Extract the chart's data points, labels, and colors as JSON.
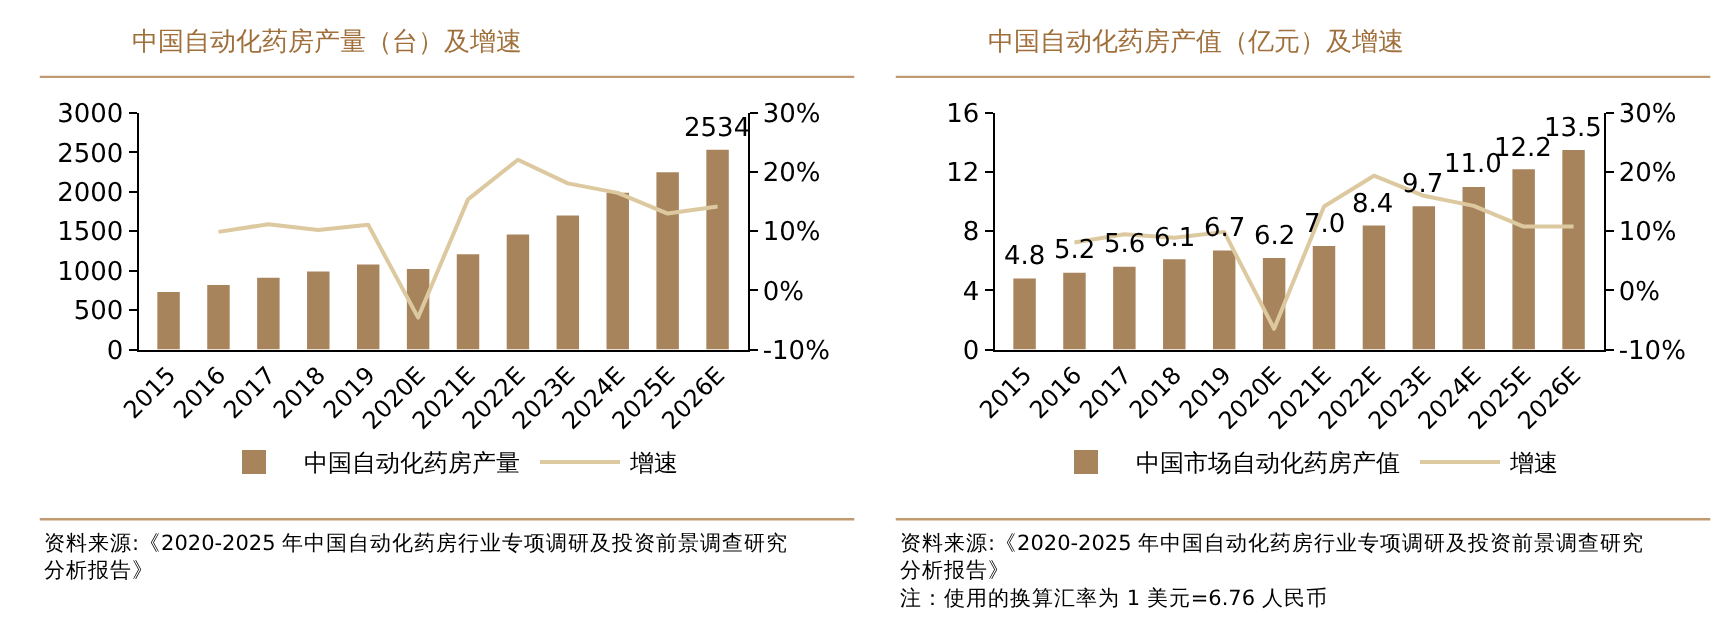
{
  "chart_data": [
    {
      "type": "bar",
      "title": "中国自动化药房产量（台）及增速",
      "categories": [
        "2015",
        "2016",
        "2017",
        "2018",
        "2019",
        "2020E",
        "2021E",
        "2022E",
        "2023E",
        "2024E",
        "2025E",
        "2026E"
      ],
      "series": [
        {
          "name": "中国自动化药房产量",
          "color": "#a8845c",
          "values": [
            730,
            820,
            910,
            990,
            1080,
            1020,
            1210,
            1460,
            1700,
            1990,
            2250,
            2534
          ],
          "value_labels": [
            null,
            null,
            null,
            null,
            null,
            null,
            null,
            null,
            null,
            null,
            null,
            "2534"
          ]
        },
        {
          "name": "增速",
          "type": "line",
          "axis": "y2",
          "color": "#dcc9a0",
          "values": [
            null,
            9.9,
            11.2,
            10.2,
            11.1,
            -4.6,
            15.4,
            22.1,
            18.1,
            16.5,
            13.0,
            14.2
          ]
        }
      ],
      "ylim": [
        0,
        3000
      ],
      "yticks": [
        0,
        500,
        1000,
        1500,
        2000,
        2500,
        3000
      ],
      "y2lim": [
        -10,
        30
      ],
      "y2ticks": [
        {
          "value": -10,
          "label": "-10%"
        },
        {
          "value": 0,
          "label": "0%"
        },
        {
          "value": 10,
          "label": "10%"
        },
        {
          "value": 20,
          "label": "20%"
        },
        {
          "value": 30,
          "label": "30%"
        }
      ],
      "legend": "bottom",
      "marker": "none",
      "line_style": "solid",
      "annotations": [
        "资料来源:《2020-2025 年中国自动化药房行业专项调研及投资前景调查研究分析报告》"
      ]
    },
    {
      "type": "bar",
      "title": "中国自动化药房产值（亿元）及增速",
      "categories": [
        "2015",
        "2016",
        "2017",
        "2018",
        "2019",
        "2020E",
        "2021E",
        "2022E",
        "2023E",
        "2024E",
        "2025E",
        "2026E"
      ],
      "series": [
        {
          "name": "中国市场自动化药房产值",
          "color": "#a8845c",
          "values": [
            4.8,
            5.2,
            5.6,
            6.1,
            6.7,
            6.2,
            7.0,
            8.4,
            9.7,
            11.0,
            12.2,
            13.5
          ],
          "value_labels": [
            "4.8",
            "5.2",
            "5.6",
            "6.1",
            "6.7",
            "6.2",
            "7.0",
            "8.4",
            "9.7",
            "11.0",
            "12.2",
            "13.5"
          ]
        },
        {
          "name": "增速",
          "type": "line",
          "axis": "y2",
          "color": "#dcc9a0",
          "values": [
            null,
            8.1,
            9.5,
            8.9,
            9.9,
            -6.5,
            14.2,
            19.4,
            16.0,
            14.3,
            10.8,
            10.8
          ]
        }
      ],
      "ylim": [
        0,
        16
      ],
      "yticks": [
        0,
        4,
        8,
        12,
        16
      ],
      "y2lim": [
        -10,
        30
      ],
      "y2ticks": [
        {
          "value": -10,
          "label": "-10%"
        },
        {
          "value": 0,
          "label": "0%"
        },
        {
          "value": 10,
          "label": "10%"
        },
        {
          "value": 20,
          "label": "20%"
        },
        {
          "value": 30,
          "label": "30%"
        }
      ],
      "legend": "bottom",
      "marker": "none",
      "line_style": "solid",
      "annotations": [
        "资料来源:《2020-2025 年中国自动化药房行业专项调研及投资前景调查研究分析报告》",
        "注：使用的换算汇率为 1 美元=6.76 人民币"
      ]
    }
  ]
}
